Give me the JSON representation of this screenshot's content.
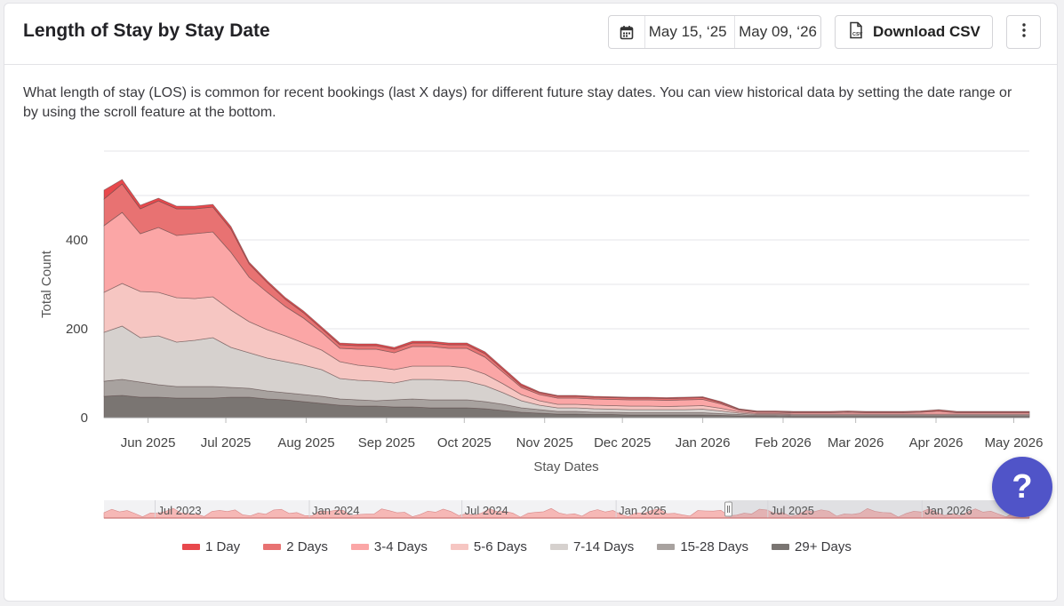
{
  "header": {
    "title": "Length of Stay by Stay Date",
    "date_start": "May 15, ‘25",
    "date_end": "May 09, ‘26",
    "download_label": "Download CSV",
    "more_icon": "more-vertical-icon",
    "calendar_icon": "calendar-icon",
    "csv_icon": "csv-file-icon"
  },
  "description": "What length of stay (LOS) is common for recent bookings (last X days) for different future stay dates. You can view historical data by setting the date range or by using the scroll feature at the bottom.",
  "help_label": "?",
  "chart_data": {
    "type": "area",
    "stacked": true,
    "xlabel": "Stay Dates",
    "ylabel": "Total Count",
    "ylim": [
      0,
      600
    ],
    "yticks": [
      0,
      200,
      400
    ],
    "xticks": [
      "Jun 2025",
      "Jul 2025",
      "Aug 2025",
      "Sep 2025",
      "Oct 2025",
      "Nov 2025",
      "Dec 2025",
      "Jan 2026",
      "Feb 2026",
      "Mar 2026",
      "Apr 2026",
      "May 2026"
    ],
    "x": [
      "2025-05-15",
      "2025-05-22",
      "2025-05-29",
      "2025-06-05",
      "2025-06-12",
      "2025-06-19",
      "2025-06-26",
      "2025-07-03",
      "2025-07-10",
      "2025-07-17",
      "2025-07-24",
      "2025-07-31",
      "2025-08-07",
      "2025-08-14",
      "2025-08-21",
      "2025-08-28",
      "2025-09-04",
      "2025-09-11",
      "2025-09-18",
      "2025-09-25",
      "2025-10-02",
      "2025-10-09",
      "2025-10-16",
      "2025-10-23",
      "2025-10-30",
      "2025-11-06",
      "2025-11-13",
      "2025-11-20",
      "2025-11-27",
      "2025-12-04",
      "2025-12-11",
      "2025-12-18",
      "2025-12-25",
      "2026-01-01",
      "2026-01-08",
      "2026-01-15",
      "2026-01-22",
      "2026-01-29",
      "2026-02-05",
      "2026-02-12",
      "2026-02-19",
      "2026-02-26",
      "2026-03-05",
      "2026-03-12",
      "2026-03-19",
      "2026-03-26",
      "2026-04-02",
      "2026-04-09",
      "2026-04-16",
      "2026-04-23",
      "2026-04-30",
      "2026-05-07"
    ],
    "series": [
      {
        "name": "29+ Days",
        "color": "#7a7572",
        "values": [
          48,
          50,
          46,
          46,
          44,
          44,
          44,
          46,
          46,
          42,
          40,
          36,
          32,
          28,
          26,
          26,
          24,
          24,
          22,
          22,
          22,
          20,
          16,
          12,
          10,
          8,
          8,
          7,
          7,
          6,
          6,
          6,
          6,
          6,
          5,
          4,
          3,
          3,
          2,
          2,
          2,
          2,
          2,
          2,
          2,
          2,
          2,
          2,
          2,
          2,
          2,
          2
        ]
      },
      {
        "name": "15-28 Days",
        "color": "#a8a29f",
        "values": [
          34,
          36,
          34,
          28,
          26,
          26,
          26,
          22,
          20,
          18,
          16,
          16,
          16,
          14,
          14,
          12,
          16,
          18,
          18,
          18,
          18,
          16,
          14,
          10,
          8,
          6,
          6,
          5,
          5,
          5,
          5,
          5,
          5,
          5,
          4,
          3,
          2,
          2,
          2,
          2,
          2,
          2,
          2,
          2,
          2,
          2,
          2,
          2,
          2,
          2,
          2,
          2
        ]
      },
      {
        "name": "7-14 Days",
        "color": "#d6d1ce",
        "values": [
          110,
          120,
          100,
          110,
          100,
          104,
          110,
          90,
          80,
          74,
          70,
          66,
          60,
          46,
          44,
          44,
          38,
          44,
          46,
          44,
          42,
          36,
          26,
          16,
          10,
          8,
          8,
          8,
          7,
          7,
          7,
          7,
          7,
          8,
          6,
          3,
          2,
          2,
          2,
          2,
          2,
          2,
          2,
          2,
          2,
          2,
          2,
          2,
          2,
          2,
          2,
          2
        ]
      },
      {
        "name": "5-6 Days",
        "color": "#f6c6c2",
        "values": [
          90,
          96,
          104,
          98,
          100,
          94,
          92,
          84,
          70,
          64,
          58,
          50,
          44,
          38,
          34,
          32,
          30,
          30,
          30,
          32,
          30,
          26,
          20,
          14,
          10,
          8,
          8,
          8,
          8,
          8,
          8,
          7,
          8,
          8,
          6,
          3,
          2,
          2,
          2,
          2,
          2,
          2,
          2,
          2,
          2,
          2,
          2,
          2,
          2,
          2,
          2,
          2
        ]
      },
      {
        "name": "3-4 Days",
        "color": "#fba6a6",
        "values": [
          150,
          160,
          130,
          146,
          140,
          146,
          146,
          130,
          100,
          84,
          66,
          56,
          40,
          30,
          36,
          40,
          38,
          44,
          44,
          40,
          44,
          38,
          26,
          16,
          14,
          14,
          14,
          14,
          14,
          14,
          14,
          14,
          14,
          14,
          10,
          4,
          3,
          3,
          3,
          3,
          3,
          4,
          3,
          3,
          3,
          4,
          6,
          3,
          3,
          3,
          3,
          3
        ]
      },
      {
        "name": "2 Days",
        "color": "#e87272",
        "values": [
          60,
          64,
          56,
          60,
          60,
          56,
          56,
          52,
          30,
          22,
          16,
          12,
          8,
          8,
          8,
          8,
          8,
          8,
          8,
          8,
          8,
          8,
          6,
          4,
          4,
          4,
          4,
          4,
          4,
          4,
          4,
          4,
          4,
          4,
          3,
          2,
          2,
          2,
          2,
          2,
          2,
          2,
          2,
          2,
          2,
          2,
          3,
          2,
          2,
          2,
          2,
          2
        ]
      },
      {
        "name": "1 Day",
        "color": "#e8484c",
        "values": [
          20,
          10,
          8,
          6,
          6,
          6,
          6,
          6,
          4,
          4,
          4,
          4,
          4,
          4,
          4,
          4,
          4,
          4,
          4,
          4,
          4,
          4,
          4,
          4,
          2,
          2,
          2,
          2,
          2,
          2,
          2,
          2,
          2,
          2,
          2,
          1,
          1,
          1,
          1,
          1,
          1,
          1,
          1,
          1,
          1,
          1,
          1,
          1,
          1,
          1,
          1,
          1
        ]
      }
    ],
    "navigator": {
      "labels": [
        "Jul 2023",
        "Jan 2024",
        "Jul 2024",
        "Jan 2025",
        "Jul 2025",
        "Jan 2026"
      ],
      "x_start": "2023-05-01",
      "x_end": "2026-05-09",
      "selected_start": "2025-05-15",
      "selected_end": "2026-05-09"
    },
    "legend": [
      "1 Day",
      "2 Days",
      "3-4 Days",
      "5-6 Days",
      "7-14 Days",
      "15-28 Days",
      "29+ Days"
    ],
    "legend_colors": [
      "#e8484c",
      "#e87272",
      "#fba6a6",
      "#f6c6c2",
      "#d6d1ce",
      "#a8a29f",
      "#7a7572"
    ]
  }
}
